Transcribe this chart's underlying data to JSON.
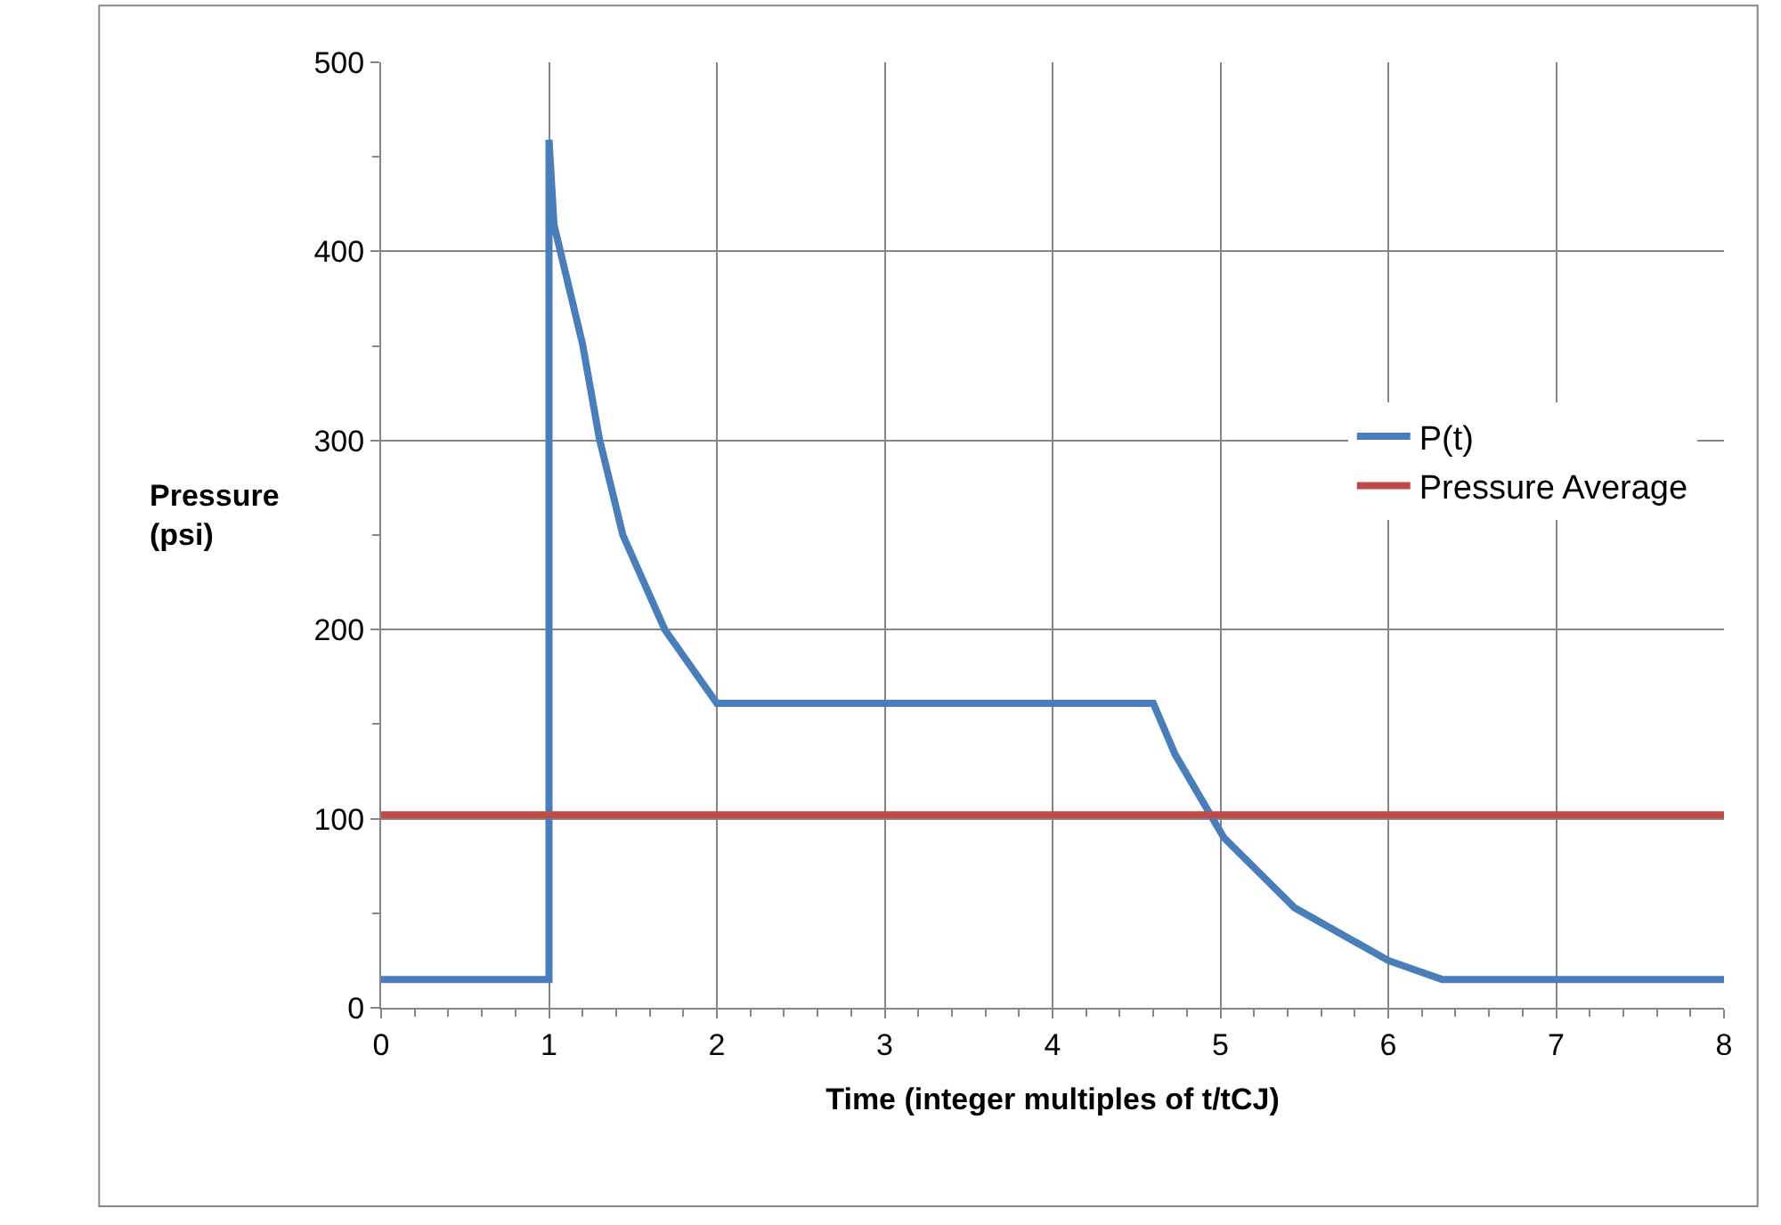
{
  "chart_data": {
    "type": "line",
    "xlabel": "Time (integer multiples of t/tCJ)",
    "ylabel": "Pressure\n(psi)",
    "series": [
      {
        "name": "P(t)",
        "color": "#4a7ebb",
        "x": [
          0,
          1,
          1,
          1.03,
          1.2,
          1.3,
          1.44,
          1.69,
          2,
          4.6,
          4.73,
          5.02,
          5.44,
          6.0,
          6.32,
          8
        ],
        "values": [
          15,
          15,
          459,
          414,
          351,
          301,
          250,
          200,
          161,
          161,
          134,
          90,
          53,
          25,
          15,
          15
        ]
      },
      {
        "name": "Pressure Average",
        "color": "#be4b48",
        "x": [
          0,
          8
        ],
        "values": [
          102,
          102
        ]
      }
    ],
    "xlim": [
      0,
      8
    ],
    "xticks": [
      0,
      1,
      2,
      3,
      4,
      5,
      6,
      7,
      8
    ],
    "ylim": [
      0,
      500
    ],
    "yticks": [
      0,
      100,
      200,
      300,
      400,
      500
    ],
    "grid": true,
    "legend": "top right",
    "marker": "none",
    "line_style": "solid"
  }
}
